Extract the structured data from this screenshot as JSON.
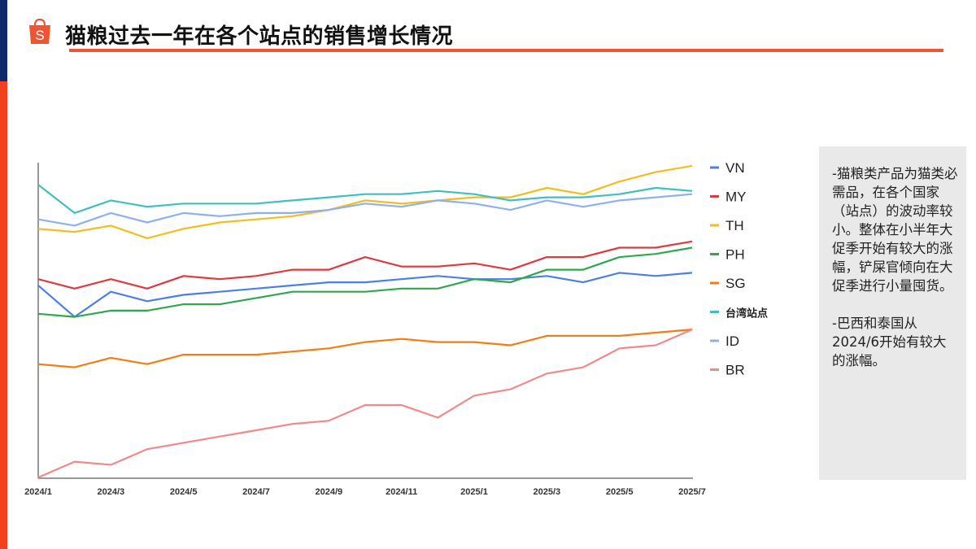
{
  "header": {
    "title": "猫粮过去一年在各个站点的销售增长情况",
    "logo_letter": "S",
    "accent_color": "#ee5532"
  },
  "note": {
    "text": "-猫粮类产品为猫类必需品，在各个国家（站点）的波动率较小。整体在小半年大促季开始有较大的涨幅，铲屎官倾向在大促季进行小量囤货。\n\n-巴西和泰国从2024/6开始有较大的涨幅。"
  },
  "chart_data": {
    "type": "line",
    "title": "",
    "xlabel": "",
    "ylabel": "",
    "y_axis_labels_shown": false,
    "ylim": [
      0,
      100
    ],
    "grid": false,
    "legend_position": "right",
    "x": [
      "2024/1",
      "2024/2",
      "2024/3",
      "2024/4",
      "2024/5",
      "2024/6",
      "2024/7",
      "2024/8",
      "2024/9",
      "2024/10",
      "2024/11",
      "2024/12",
      "2025/1",
      "2025/2",
      "2025/3",
      "2025/4",
      "2025/5",
      "2025/6",
      "2025/7"
    ],
    "x_tick_labels": [
      "2024/1",
      "2024/3",
      "2024/5",
      "2024/7",
      "2024/9",
      "2024/11",
      "2025/1",
      "2025/3",
      "2025/5",
      "2025/7"
    ],
    "series": [
      {
        "name": "VN",
        "color": "#4a7fe8",
        "values": [
          61,
          51,
          59,
          56,
          58,
          59,
          60,
          61,
          62,
          62,
          63,
          64,
          63,
          63,
          64,
          62,
          65,
          64,
          65
        ]
      },
      {
        "name": "MY",
        "color": "#e0393e",
        "values": [
          63,
          60,
          63,
          60,
          64,
          63,
          64,
          66,
          66,
          70,
          67,
          67,
          68,
          66,
          70,
          70,
          73,
          73,
          75
        ]
      },
      {
        "name": "TH",
        "color": "#f2bd1e",
        "values": [
          79,
          78,
          80,
          76,
          79,
          81,
          82,
          83,
          85,
          88,
          87,
          88,
          89,
          89,
          92,
          90,
          94,
          97,
          99
        ]
      },
      {
        "name": "PH",
        "color": "#2ea84f",
        "values": [
          52,
          51,
          53,
          53,
          55,
          55,
          57,
          59,
          59,
          59,
          60,
          60,
          63,
          62,
          66,
          66,
          70,
          71,
          73
        ]
      },
      {
        "name": "SG",
        "color": "#f57c14",
        "values": [
          36,
          35,
          38,
          36,
          39,
          39,
          39,
          40,
          41,
          43,
          44,
          43,
          43,
          42,
          45,
          45,
          45,
          46,
          47
        ]
      },
      {
        "name": "台湾站点",
        "color": "#3fc0c0",
        "values": [
          93,
          84,
          88,
          86,
          87,
          87,
          87,
          88,
          89,
          90,
          90,
          91,
          90,
          88,
          89,
          89,
          90,
          92,
          91
        ]
      },
      {
        "name": "ID",
        "color": "#8fb0f0",
        "values": [
          82,
          80,
          84,
          81,
          84,
          83,
          84,
          84,
          85,
          87,
          86,
          88,
          87,
          85,
          88,
          86,
          88,
          89,
          90
        ]
      },
      {
        "name": "BR",
        "color": "#f08a8a",
        "values": [
          0,
          5,
          4,
          9,
          11,
          13,
          15,
          17,
          18,
          23,
          23,
          19,
          26,
          28,
          33,
          35,
          41,
          42,
          47
        ]
      }
    ]
  }
}
